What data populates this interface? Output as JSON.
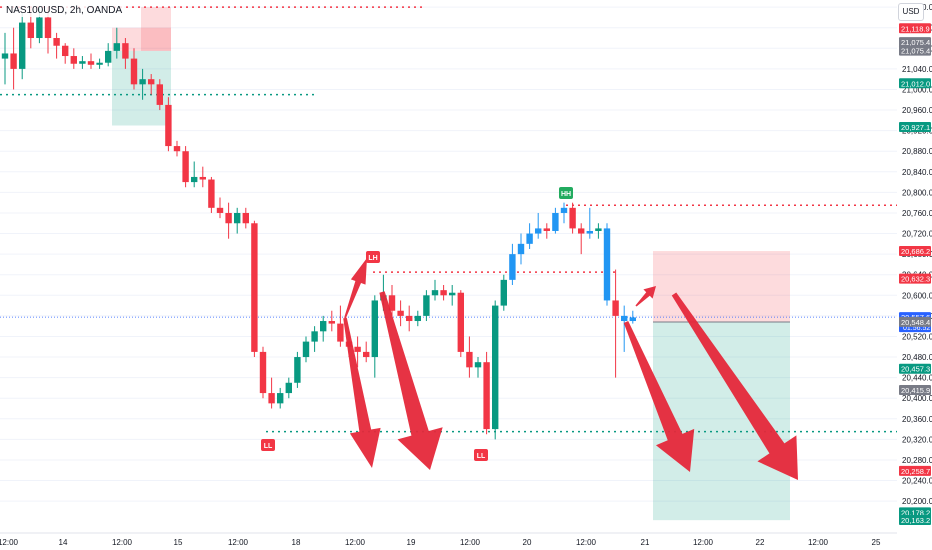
{
  "header": {
    "symbol": "NAS100USD, 2h, OANDA",
    "currency": "USD"
  },
  "chart_data": {
    "type": "candlestick",
    "ylim": [
      20140,
      21170
    ],
    "y_ticks": [
      20200,
      20240,
      20280,
      20320,
      20360,
      20400,
      20440,
      20480,
      20520,
      20560,
      20600,
      20640,
      20680,
      20720,
      20760,
      20800,
      20840,
      20880,
      20920,
      20960,
      21000,
      21040,
      21080,
      21120,
      21160
    ],
    "x_ticks": [
      "12:00",
      "14",
      "12:00",
      "15",
      "12:00",
      "18",
      "12:00",
      "19",
      "12:00",
      "20",
      "12:00",
      "21",
      "12:00",
      "22",
      "12:00",
      "25"
    ],
    "candles": [
      {
        "o": 21060,
        "h": 21110,
        "l": 21010,
        "c": 21070
      },
      {
        "o": 21070,
        "h": 21120,
        "l": 21000,
        "c": 21040
      },
      {
        "o": 21040,
        "h": 21150,
        "l": 21020,
        "c": 21130
      },
      {
        "o": 21130,
        "h": 21160,
        "l": 21080,
        "c": 21100
      },
      {
        "o": 21100,
        "h": 21160,
        "l": 21090,
        "c": 21140
      },
      {
        "o": 21140,
        "h": 21160,
        "l": 21070,
        "c": 21100
      },
      {
        "o": 21100,
        "h": 21110,
        "l": 21060,
        "c": 21085
      },
      {
        "o": 21085,
        "h": 21090,
        "l": 21050,
        "c": 21065
      },
      {
        "o": 21065,
        "h": 21080,
        "l": 21040,
        "c": 21050
      },
      {
        "o": 21050,
        "h": 21065,
        "l": 21040,
        "c": 21055
      },
      {
        "o": 21055,
        "h": 21070,
        "l": 21040,
        "c": 21048
      },
      {
        "o": 21048,
        "h": 21060,
        "l": 21040,
        "c": 21052
      },
      {
        "o": 21052,
        "h": 21090,
        "l": 21045,
        "c": 21075
      },
      {
        "o": 21075,
        "h": 21120,
        "l": 21060,
        "c": 21090
      },
      {
        "o": 21090,
        "h": 21100,
        "l": 21040,
        "c": 21060
      },
      {
        "o": 21060,
        "h": 21080,
        "l": 21000,
        "c": 21010
      },
      {
        "o": 21010,
        "h": 21040,
        "l": 20980,
        "c": 21020
      },
      {
        "o": 21020,
        "h": 21030,
        "l": 20990,
        "c": 21010
      },
      {
        "o": 21010,
        "h": 21020,
        "l": 20960,
        "c": 20970
      },
      {
        "o": 20970,
        "h": 20985,
        "l": 20880,
        "c": 20890
      },
      {
        "o": 20890,
        "h": 20900,
        "l": 20870,
        "c": 20880
      },
      {
        "o": 20880,
        "h": 20890,
        "l": 20810,
        "c": 20820
      },
      {
        "o": 20820,
        "h": 20860,
        "l": 20810,
        "c": 20830
      },
      {
        "o": 20830,
        "h": 20850,
        "l": 20810,
        "c": 20825
      },
      {
        "o": 20825,
        "h": 20830,
        "l": 20760,
        "c": 20770
      },
      {
        "o": 20770,
        "h": 20790,
        "l": 20750,
        "c": 20760
      },
      {
        "o": 20760,
        "h": 20780,
        "l": 20710,
        "c": 20740
      },
      {
        "o": 20740,
        "h": 20770,
        "l": 20720,
        "c": 20760
      },
      {
        "o": 20760,
        "h": 20770,
        "l": 20730,
        "c": 20740
      },
      {
        "o": 20740,
        "h": 20745,
        "l": 20480,
        "c": 20490
      },
      {
        "o": 20490,
        "h": 20500,
        "l": 20400,
        "c": 20410
      },
      {
        "o": 20410,
        "h": 20440,
        "l": 20380,
        "c": 20390
      },
      {
        "o": 20390,
        "h": 20420,
        "l": 20380,
        "c": 20410
      },
      {
        "o": 20410,
        "h": 20440,
        "l": 20400,
        "c": 20430
      },
      {
        "o": 20430,
        "h": 20490,
        "l": 20420,
        "c": 20480
      },
      {
        "o": 20480,
        "h": 20520,
        "l": 20470,
        "c": 20510
      },
      {
        "o": 20510,
        "h": 20540,
        "l": 20490,
        "c": 20530
      },
      {
        "o": 20530,
        "h": 20560,
        "l": 20510,
        "c": 20550
      },
      {
        "o": 20550,
        "h": 20570,
        "l": 20530,
        "c": 20545
      },
      {
        "o": 20545,
        "h": 20580,
        "l": 20500,
        "c": 20510
      },
      {
        "o": 20510,
        "h": 20530,
        "l": 20480,
        "c": 20500
      },
      {
        "o": 20500,
        "h": 20520,
        "l": 20460,
        "c": 20490
      },
      {
        "o": 20490,
        "h": 20510,
        "l": 20470,
        "c": 20480
      },
      {
        "o": 20480,
        "h": 20600,
        "l": 20440,
        "c": 20590
      },
      {
        "o": 20590,
        "h": 20640,
        "l": 20570,
        "c": 20600
      },
      {
        "o": 20600,
        "h": 20620,
        "l": 20560,
        "c": 20570
      },
      {
        "o": 20570,
        "h": 20590,
        "l": 20540,
        "c": 20560
      },
      {
        "o": 20560,
        "h": 20580,
        "l": 20530,
        "c": 20550
      },
      {
        "o": 20550,
        "h": 20570,
        "l": 20540,
        "c": 20560
      },
      {
        "o": 20560,
        "h": 20610,
        "l": 20550,
        "c": 20600
      },
      {
        "o": 20600,
        "h": 20630,
        "l": 20590,
        "c": 20610
      },
      {
        "o": 20610,
        "h": 20620,
        "l": 20590,
        "c": 20600
      },
      {
        "o": 20600,
        "h": 20620,
        "l": 20580,
        "c": 20605
      },
      {
        "o": 20605,
        "h": 20610,
        "l": 20480,
        "c": 20490
      },
      {
        "o": 20490,
        "h": 20520,
        "l": 20440,
        "c": 20460
      },
      {
        "o": 20460,
        "h": 20480,
        "l": 20440,
        "c": 20470
      },
      {
        "o": 20470,
        "h": 20490,
        "l": 20330,
        "c": 20340
      },
      {
        "o": 20340,
        "h": 20590,
        "l": 20320,
        "c": 20580
      },
      {
        "o": 20580,
        "h": 20640,
        "l": 20570,
        "c": 20630
      },
      {
        "o": 20630,
        "h": 20700,
        "l": 20620,
        "c": 20680
      },
      {
        "o": 20680,
        "h": 20720,
        "l": 20660,
        "c": 20700
      },
      {
        "o": 20700,
        "h": 20740,
        "l": 20690,
        "c": 20720
      },
      {
        "o": 20720,
        "h": 20760,
        "l": 20710,
        "c": 20730
      },
      {
        "o": 20730,
        "h": 20740,
        "l": 20710,
        "c": 20725
      },
      {
        "o": 20725,
        "h": 20770,
        "l": 20720,
        "c": 20760
      },
      {
        "o": 20760,
        "h": 20780,
        "l": 20740,
        "c": 20770
      },
      {
        "o": 20770,
        "h": 20780,
        "l": 20720,
        "c": 20730
      },
      {
        "o": 20730,
        "h": 20740,
        "l": 20680,
        "c": 20720
      },
      {
        "o": 20720,
        "h": 20770,
        "l": 20710,
        "c": 20725
      },
      {
        "o": 20725,
        "h": 20740,
        "l": 20710,
        "c": 20730
      },
      {
        "o": 20730,
        "h": 20740,
        "l": 20580,
        "c": 20590
      },
      {
        "o": 20590,
        "h": 20650,
        "l": 20440,
        "c": 20560
      },
      {
        "o": 20560,
        "h": 20580,
        "l": 20490,
        "c": 20550
      },
      {
        "o": 20550,
        "h": 20570,
        "l": 20545,
        "c": 20557
      }
    ],
    "levels": [
      {
        "price": 21160,
        "color": "#f23645"
      },
      {
        "price": 20990,
        "color": "#089981"
      },
      {
        "price": 20775,
        "color": "#f23645"
      },
      {
        "price": 20645,
        "color": "#f23645"
      },
      {
        "price": 20335,
        "color": "#089981"
      }
    ],
    "labels": [
      "LH",
      "HH",
      "LL",
      "LL"
    ],
    "price_tags": [
      {
        "price": 21118.9,
        "text": "21,118.9",
        "color": "#f23645"
      },
      {
        "price": 21092,
        "text": "21,075.4",
        "color": "#787b86"
      },
      {
        "price": 21075.4,
        "text": "21,075.4",
        "color": "#787b86"
      },
      {
        "price": 21012,
        "text": "21,012.0",
        "color": "#089981"
      },
      {
        "price": 20927.1,
        "text": "20,927.1",
        "color": "#089981"
      },
      {
        "price": 20686.2,
        "text": "20,686.2",
        "color": "#f23645"
      },
      {
        "price": 20632.3,
        "text": "20,632.3",
        "color": "#f23645"
      },
      {
        "price": 20557.6,
        "text": "20,557.6",
        "color": "#2962ff",
        "sub": "01:56:52"
      },
      {
        "price": 20548.4,
        "text": "20,548.4",
        "color": "#787b86"
      },
      {
        "price": 20457.3,
        "text": "20,457.3",
        "color": "#089981"
      },
      {
        "price": 20415.9,
        "text": "20,415.9",
        "color": "#787b86"
      },
      {
        "price": 20258.7,
        "text": "20,258.7",
        "color": "#f23645"
      },
      {
        "price": 20178.2,
        "text": "20,178.2",
        "color": "#089981"
      },
      {
        "price": 20163.2,
        "text": "20,163.2",
        "color": "#089981"
      }
    ],
    "colors": {
      "up": "#089981",
      "down": "#f23645",
      "highlight": "#2196f3",
      "arrow": "#e5283a"
    }
  }
}
